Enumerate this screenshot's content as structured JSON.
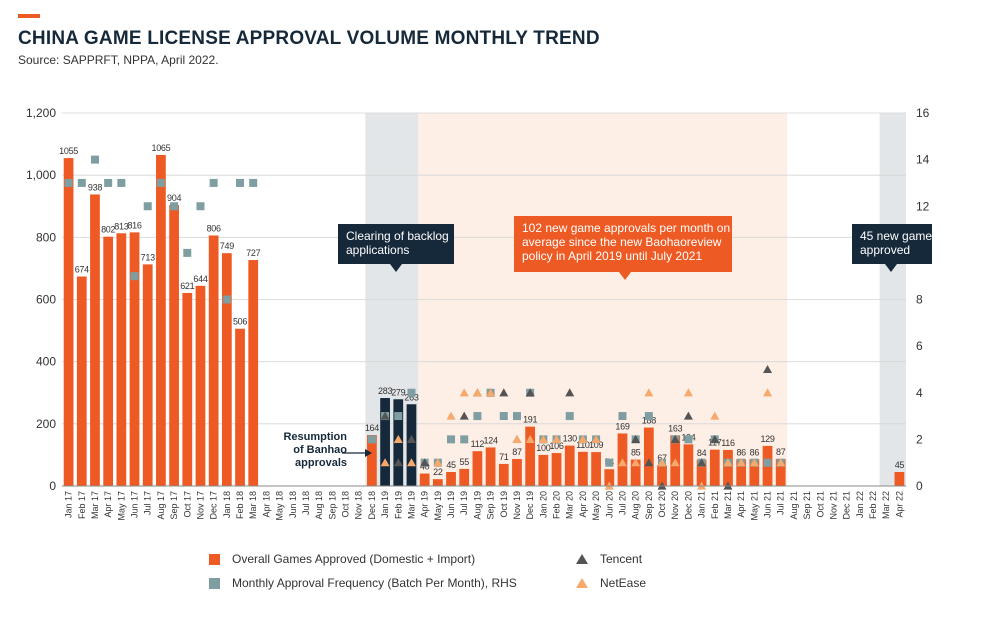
{
  "header": {
    "title": "CHINA GAME LICENSE APPROVAL VOLUME MONTHLY TREND",
    "source": "Source: SAPPRFT, NPPA, April 2022."
  },
  "colors": {
    "bar": "#ee5a24",
    "bar_dark": "#16293a",
    "frequency": "#7f9ea1",
    "tencent": "#545454",
    "netease": "#f6a96b",
    "shade_gray": "#e3e6e9",
    "shade_peach": "#fdeee6",
    "callout_dark": "#16293a",
    "callout_orange": "#ee5a24"
  },
  "callouts": {
    "backlog": [
      "Clearing of backlog",
      "applications"
    ],
    "average": [
      "102 new game approvals per month on",
      "average since the new Baohaoreview",
      "policy in April 2019 until July 2021"
    ],
    "new45": [
      "45 new game",
      "approved"
    ],
    "resumption": [
      "Resumption",
      "of Banhao",
      "approvals"
    ]
  },
  "legend": {
    "bars": "Overall Games Approved (Domestic + Import)",
    "frequency": "Monthly Approval Frequency (Batch Per Month), RHS",
    "tencent": "Tencent",
    "netease": "NetEase"
  },
  "chart_data": {
    "type": "bar",
    "x": [
      "Jan 17",
      "Feb 17",
      "Mar 17",
      "Apr 17",
      "May 17",
      "Jun 17",
      "Jul 17",
      "Aug 17",
      "Sep 17",
      "Oct 17",
      "Nov 17",
      "Dec 17",
      "Jan 18",
      "Feb 18",
      "Mar 18",
      "Apr 18",
      "May 18",
      "Jun 18",
      "Jul 18",
      "Aug 18",
      "Sep 18",
      "Oct 18",
      "Nov 18",
      "Dec 18",
      "Jan 19",
      "Feb 19",
      "Mar 19",
      "Apr 19",
      "May 19",
      "Jun 19",
      "Jul 19",
      "Aug 19",
      "Sep 19",
      "Oct 19",
      "Nov 19",
      "Dec 19",
      "Jan 20",
      "Feb 20",
      "Mar 20",
      "Apr 20",
      "May 20",
      "Jun 20",
      "Jul 20",
      "Aug 20",
      "Sep 20",
      "Oct 20",
      "Nov 20",
      "Dec 20",
      "Jan 21",
      "Feb 21",
      "Mar 21",
      "Apr 21",
      "May 21",
      "Jun 21",
      "Jul 21",
      "Aug 21",
      "Sep 21",
      "Oct 21",
      "Nov 21",
      "Dec 21",
      "Jan 22",
      "Feb 22",
      "Mar 22",
      "Apr 22"
    ],
    "yticks_left": [
      "0",
      "200",
      "400",
      "600",
      "800",
      "1,000",
      "1,200"
    ],
    "yticks_right": [
      "0",
      "2",
      "4",
      "6",
      "8",
      "10",
      "12",
      "14",
      "16"
    ],
    "ylim_left": [
      0,
      1200
    ],
    "ylim_right": [
      0,
      16
    ],
    "highlight_dark_months": [
      "Jan 19",
      "Feb 19",
      "Mar 19"
    ],
    "shaded_gray": [
      [
        "Dec 18",
        "Mar 19"
      ],
      [
        "Mar 22",
        "Apr 22"
      ]
    ],
    "shaded_peach": [
      [
        "Apr 19",
        "Jul 21"
      ]
    ],
    "series": [
      {
        "name": "Overall Games Approved (Domestic + Import)",
        "axis": "left",
        "type": "bar",
        "values": [
          1055,
          674,
          938,
          802,
          813,
          816,
          713,
          1065,
          904,
          621,
          644,
          806,
          749,
          506,
          727,
          0,
          0,
          0,
          0,
          0,
          0,
          0,
          0,
          164,
          283,
          279,
          263,
          40,
          22,
          45,
          55,
          112,
          124,
          71,
          87,
          191,
          100,
          106,
          130,
          110,
          109,
          54,
          169,
          85,
          188,
          67,
          163,
          134,
          84,
          117,
          116,
          86,
          86,
          129,
          87,
          0,
          0,
          0,
          0,
          0,
          0,
          0,
          0,
          45
        ],
        "labels": [
          "1055",
          "674",
          "938",
          "802",
          "813",
          "816",
          "713",
          "1065",
          "904",
          "621",
          "644",
          "806",
          "749",
          "506",
          "727",
          "",
          "",
          "",
          "",
          "",
          "",
          "",
          "",
          "164",
          "283",
          "279",
          "263",
          "40",
          "22",
          "45",
          "55",
          "112",
          "124",
          "71",
          "87",
          "191",
          "100",
          "106",
          "130",
          "110",
          "109",
          "54",
          "169",
          "85",
          "188",
          "67",
          "163",
          "134",
          "84",
          "117",
          "116",
          "86",
          "86",
          "129",
          "87",
          "",
          "",
          "",
          "",
          "",
          "",
          "",
          "",
          "45"
        ]
      },
      {
        "name": "Monthly Approval Frequency (Batch Per Month), RHS",
        "axis": "right",
        "type": "scatter",
        "values": [
          13,
          13,
          14,
          13,
          13,
          9,
          12,
          13,
          12,
          10,
          12,
          13,
          8,
          13,
          13,
          null,
          null,
          null,
          null,
          null,
          null,
          null,
          null,
          2,
          3,
          3,
          4,
          1,
          1,
          2,
          2,
          3,
          4,
          3,
          3,
          4,
          2,
          2,
          3,
          2,
          2,
          1,
          3,
          2,
          3,
          1,
          2,
          2,
          1,
          2,
          1,
          1,
          1,
          1,
          1,
          null,
          null,
          null,
          null,
          null,
          null,
          null,
          null,
          null
        ]
      },
      {
        "name": "Tencent",
        "axis": "right",
        "type": "scatter",
        "values": [
          null,
          null,
          null,
          null,
          null,
          null,
          null,
          null,
          null,
          null,
          null,
          null,
          null,
          null,
          null,
          null,
          null,
          null,
          null,
          null,
          null,
          null,
          null,
          null,
          3,
          1,
          2,
          1,
          null,
          null,
          3,
          4,
          4,
          4,
          2,
          4,
          null,
          null,
          4,
          null,
          2,
          null,
          null,
          2,
          1,
          0,
          2,
          3,
          1,
          2,
          0,
          null,
          null,
          5,
          null,
          null,
          null,
          null,
          null,
          null,
          null,
          null,
          null,
          null
        ]
      },
      {
        "name": "NetEase",
        "axis": "right",
        "type": "scatter",
        "values": [
          null,
          null,
          null,
          null,
          null,
          null,
          null,
          null,
          null,
          null,
          null,
          null,
          null,
          null,
          null,
          null,
          null,
          null,
          null,
          null,
          null,
          null,
          null,
          null,
          1,
          2,
          1,
          null,
          1,
          3,
          4,
          4,
          4,
          null,
          2,
          2,
          2,
          2,
          null,
          2,
          2,
          0,
          1,
          1,
          4,
          1,
          1,
          4,
          0,
          3,
          1,
          1,
          1,
          4,
          1,
          null,
          null,
          null,
          null,
          null,
          null,
          null,
          null,
          null
        ]
      }
    ]
  }
}
